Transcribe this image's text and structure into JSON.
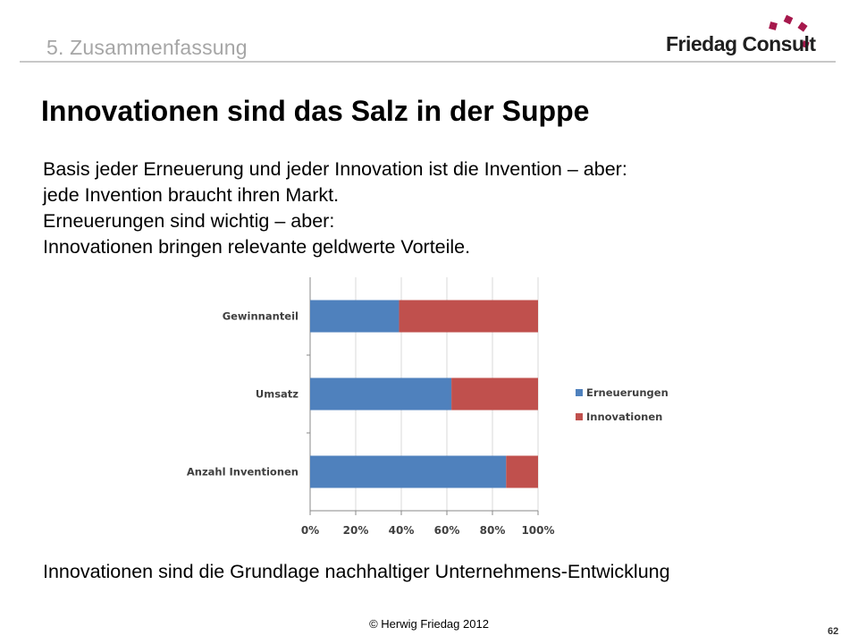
{
  "section": {
    "label": "5. Zusammenfassung"
  },
  "logo": {
    "text": "Friedag Consult",
    "accent_color": "#a6184c"
  },
  "slide": {
    "title": "Innovationen sind das Salz in der Suppe",
    "body_lines": [
      "Basis jeder Erneuerung und jeder Innovation ist die Invention – aber:",
      "jede Invention braucht ihren Markt.",
      "Erneuerungen sind wichtig – aber:",
      "Innovationen bringen relevante geldwerte Vorteile."
    ],
    "conclusion": "Innovationen sind die Grundlage nachhaltiger Unternehmens-Entwicklung"
  },
  "footer": {
    "copyright": "© Herwig Friedag 2012",
    "page_number": "62"
  },
  "chart_data": {
    "type": "bar",
    "orientation": "horizontal",
    "stacked": "percent",
    "categories": [
      "Gewinnanteil",
      "Umsatz",
      "Anzahl Inventionen"
    ],
    "series": [
      {
        "name": "Erneuerungen",
        "values": [
          39,
          62,
          86
        ],
        "color": "#4f81bd"
      },
      {
        "name": "Innovationen",
        "values": [
          61,
          38,
          14
        ],
        "color": "#c0504d"
      }
    ],
    "x_ticks": [
      "0%",
      "20%",
      "40%",
      "60%",
      "80%",
      "100%"
    ],
    "xlim": [
      0,
      100
    ],
    "grid": "vertical",
    "legend": "right"
  }
}
